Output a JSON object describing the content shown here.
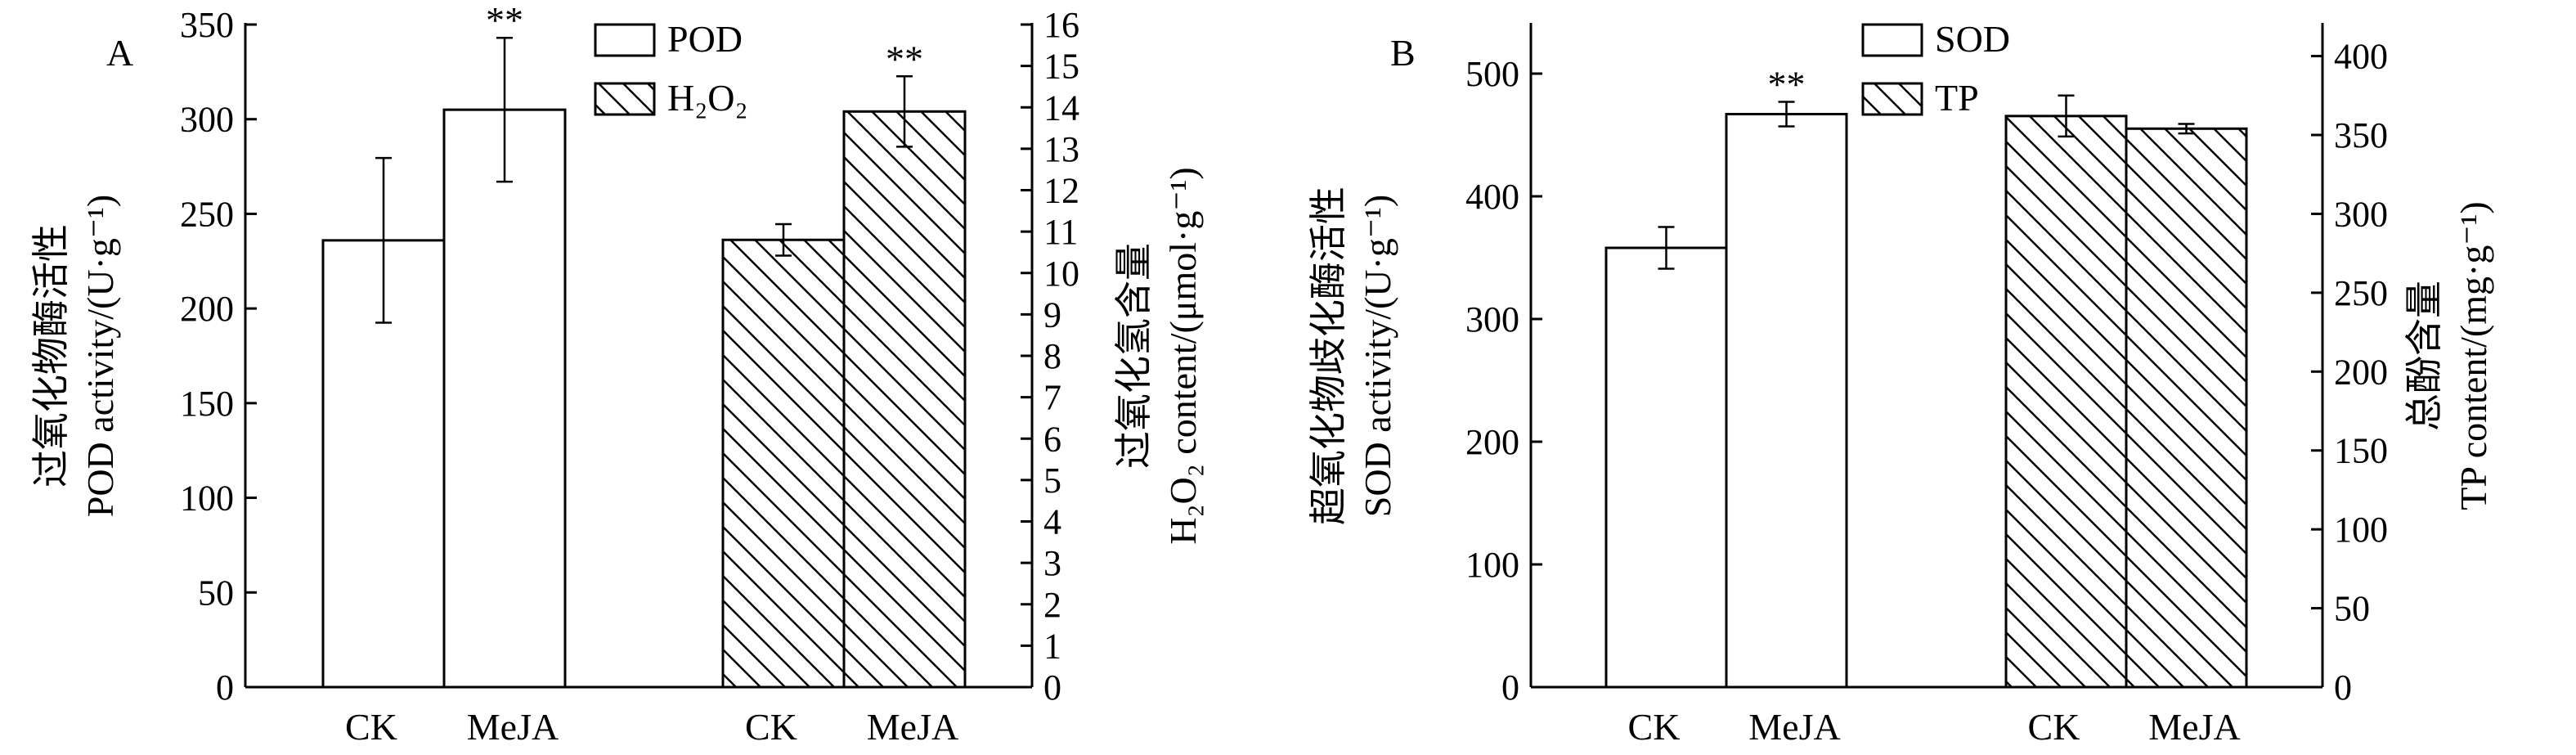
{
  "chart_data": [
    {
      "panel": "A",
      "type": "bar",
      "group_labels": [
        [
          "CK",
          "MeJA"
        ],
        [
          "CK",
          "MeJA"
        ]
      ],
      "series": [
        {
          "name": "POD",
          "axis": "left",
          "pattern": "plain",
          "group": 0,
          "values": [
            236,
            305
          ],
          "errors": [
            43.5,
            38
          ],
          "significance": [
            "",
            "**"
          ]
        },
        {
          "name": "H2O2",
          "legend_display": "H₂O₂",
          "axis": "right",
          "pattern": "hatch",
          "group": 1,
          "values": [
            10.8,
            13.9
          ],
          "errors": [
            0.38,
            0.85
          ],
          "significance": [
            "",
            "**"
          ]
        }
      ],
      "left_axis": {
        "label_lines": [
          "过氧化物酶活性",
          "POD activity/(U·g⁻¹)"
        ],
        "ylim": [
          0,
          350
        ],
        "ticks": [
          0,
          50,
          100,
          150,
          200,
          250,
          300,
          350
        ]
      },
      "right_axis": {
        "label_lines": [
          "过氧化氢含量",
          "H₂O₂ content/(μmol·g⁻¹)"
        ],
        "ylim": [
          0,
          16
        ],
        "ticks": [
          0,
          1,
          2,
          3,
          4,
          5,
          6,
          7,
          8,
          9,
          10,
          11,
          12,
          13,
          14,
          15,
          16
        ]
      },
      "legend_position": "top-center",
      "grid": false
    },
    {
      "panel": "B",
      "type": "bar",
      "group_labels": [
        [
          "CK",
          "MeJA"
        ],
        [
          "CK",
          "MeJA"
        ]
      ],
      "series": [
        {
          "name": "SOD",
          "axis": "left",
          "pattern": "plain",
          "group": 0,
          "values": [
            358,
            467
          ],
          "errors": [
            17,
            10
          ],
          "significance": [
            "",
            "**"
          ]
        },
        {
          "name": "TP",
          "axis": "right",
          "pattern": "hatch",
          "group": 1,
          "values": [
            362,
            354
          ],
          "errors": [
            13,
            3
          ],
          "significance": [
            "",
            ""
          ]
        }
      ],
      "left_axis": {
        "label_lines": [
          "超氧化物歧化酶活性",
          "SOD activity/(U·g⁻¹)"
        ],
        "ylim": [
          0,
          540
        ],
        "ticks": [
          0,
          100,
          200,
          300,
          400,
          500
        ]
      },
      "right_axis": {
        "label_lines": [
          "总酚含量",
          "TP content/(mg·g⁻¹)"
        ],
        "ylim": [
          0,
          420
        ],
        "ticks": [
          0,
          50,
          100,
          150,
          200,
          250,
          300,
          350,
          400
        ]
      },
      "legend_position": "top-center",
      "grid": false
    }
  ]
}
